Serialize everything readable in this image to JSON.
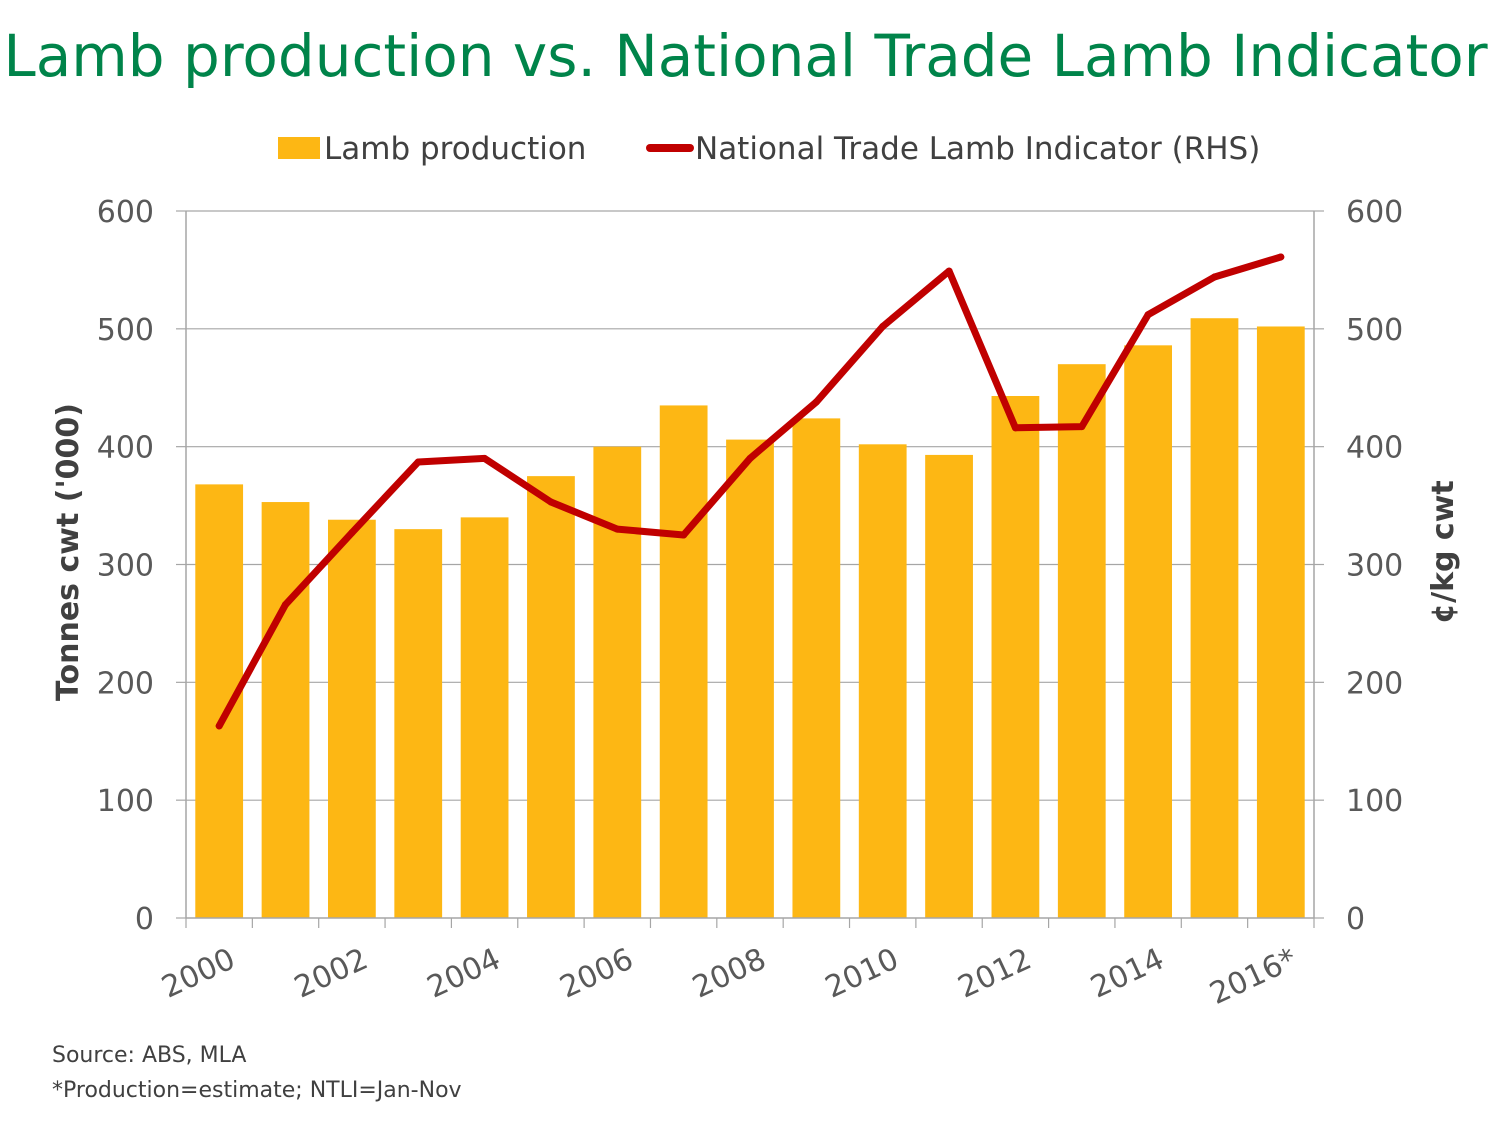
{
  "chart_data": {
    "type": "bar",
    "title": "Lamb production vs. National Trade Lamb Indicator",
    "categories": [
      "2000",
      "2001",
      "2002",
      "2003",
      "2004",
      "2005",
      "2006",
      "2007",
      "2008",
      "2009",
      "2010",
      "2011",
      "2012",
      "2013",
      "2014",
      "2015",
      "2016*"
    ],
    "x_tick_labels": [
      "2000",
      "2002",
      "2004",
      "2006",
      "2008",
      "2010",
      "2012",
      "2014",
      "2016*"
    ],
    "series": [
      {
        "name": "Lamb production",
        "type": "bar",
        "axis": "left",
        "color": "#fdb714",
        "values": [
          368,
          353,
          338,
          330,
          340,
          375,
          400,
          435,
          406,
          424,
          402,
          393,
          443,
          470,
          486,
          509,
          502
        ]
      },
      {
        "name": "National Trade Lamb Indicator (RHS)",
        "type": "line",
        "axis": "right",
        "color": "#c00000",
        "values": [
          163,
          266,
          327,
          387,
          390,
          353,
          330,
          325,
          390,
          438,
          502,
          549,
          416,
          417,
          512,
          544,
          561
        ]
      }
    ],
    "ylabel": "Tonnes cwt ('000)",
    "ylabel_right": "¢/kg cwt",
    "ylim": [
      0,
      600
    ],
    "ylim_right": [
      0,
      600
    ],
    "y_ticks": [
      0,
      100,
      200,
      300,
      400,
      500,
      600
    ],
    "grid": true,
    "legend_position": "top"
  },
  "footnotes": {
    "source": "Source: ABS, MLA",
    "note": "*Production=estimate;  NTLI=Jan-Nov"
  }
}
